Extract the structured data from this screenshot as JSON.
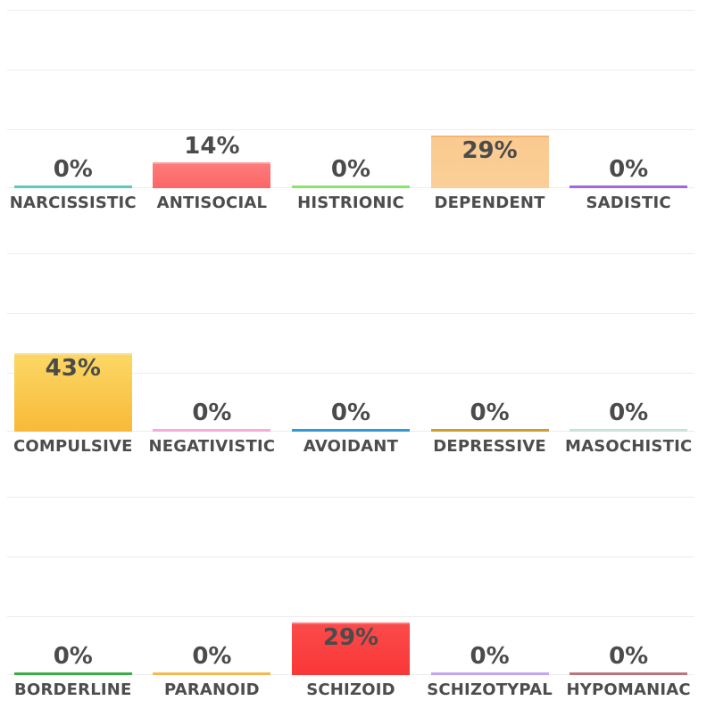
{
  "chart_data": {
    "type": "bar",
    "unit": "%",
    "ylim": [
      0,
      100
    ],
    "grid": true,
    "grid_interval_pct": 33.3,
    "legend": "none",
    "value_label_color": "#4b4b4b",
    "category_label_color": "#4d4d4d",
    "gridline_color": "#ececec",
    "rows": [
      {
        "items": [
          {
            "category": "NARCISSISTIC",
            "value": 0,
            "display": "0%",
            "color": "#5cc9bd"
          },
          {
            "category": "ANTISOCIAL",
            "value": 14,
            "display": "14%",
            "color": "#fb6f6f",
            "fill_top": "#fc7b7b",
            "fill_bottom": "#fb6666",
            "edge": "#fc9e9e"
          },
          {
            "category": "HISTRIONIC",
            "value": 0,
            "display": "0%",
            "color": "#8be56a"
          },
          {
            "category": "DEPENDENT",
            "value": 29,
            "display": "29%",
            "color": "#fbcb92",
            "fill_top": "#faca8f",
            "fill_bottom": "#fbcf99",
            "edge": "#f4b478"
          },
          {
            "category": "SADISTIC",
            "value": 0,
            "display": "0%",
            "color": "#a266e3"
          }
        ]
      },
      {
        "items": [
          {
            "category": "COMPULSIVE",
            "value": 43,
            "display": "43%",
            "color": "#f9c33e",
            "fill_top": "#fcd765",
            "fill_bottom": "#f8ba37",
            "edge": "#fde18a"
          },
          {
            "category": "NEGATIVISTIC",
            "value": 0,
            "display": "0%",
            "color": "#f8abd9"
          },
          {
            "category": "AVOIDANT",
            "value": 0,
            "display": "0%",
            "color": "#2e9bd2"
          },
          {
            "category": "DEPRESSIVE",
            "value": 0,
            "display": "0%",
            "color": "#cca02a"
          },
          {
            "category": "MASOCHISTIC",
            "value": 0,
            "display": "0%",
            "color": "#cbe3d7"
          }
        ]
      },
      {
        "items": [
          {
            "category": "BORDERLINE",
            "value": 0,
            "display": "0%",
            "color": "#39ab47"
          },
          {
            "category": "PARANOID",
            "value": 0,
            "display": "0%",
            "color": "#f3b94d"
          },
          {
            "category": "SCHIZOID",
            "value": 29,
            "display": "29%",
            "color": "#fa3e3e",
            "fill_top": "#fb4a4a",
            "fill_bottom": "#fa3737",
            "edge": "#fc7b7b"
          },
          {
            "category": "SCHIZOTYPAL",
            "value": 0,
            "display": "0%",
            "color": "#c3a5ee"
          },
          {
            "category": "HYPOMANIAC",
            "value": 0,
            "display": "0%",
            "color": "#b8777b"
          }
        ]
      }
    ]
  }
}
